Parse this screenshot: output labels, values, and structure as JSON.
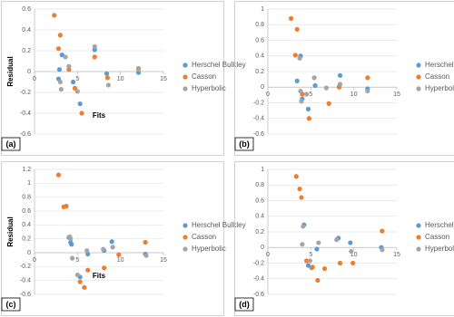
{
  "chart_data": [
    {
      "type": "scatter",
      "label": "(a)",
      "xlabel": "Fits",
      "ylabel": "Residual",
      "xlim": [
        0,
        15
      ],
      "xticks": [
        0,
        5,
        10,
        15
      ],
      "ylim": [
        -0.6,
        0.6
      ],
      "yticks": [
        -0.6,
        -0.4,
        -0.2,
        0,
        0.2,
        0.4,
        0.6
      ],
      "grid": true,
      "series": [
        {
          "name": "Herschel Bulkley",
          "color": "#5b9bd5",
          "x": [
            2.9,
            3.2,
            2.8,
            4.5,
            5.3,
            7.0,
            8.4,
            12.1
          ],
          "values": [
            0.02,
            0.16,
            -0.07,
            -0.1,
            -0.31,
            0.21,
            -0.02,
            -0.01
          ]
        },
        {
          "name": "Casson",
          "color": "#ed7d31",
          "x": [
            2.3,
            3.0,
            2.8,
            4.0,
            4.7,
            5.5,
            7.0,
            8.5,
            12.1
          ],
          "values": [
            0.54,
            0.35,
            0.22,
            0.02,
            -0.16,
            -0.4,
            0.14,
            -0.06,
            0.03
          ]
        },
        {
          "name": "Hyperbolic",
          "color": "#a5a5a5",
          "x": [
            3.1,
            3.0,
            3.6,
            4.0,
            5.0,
            7.0,
            8.6,
            12.1
          ],
          "values": [
            -0.17,
            -0.1,
            0.14,
            0.05,
            -0.19,
            0.24,
            -0.13,
            0.02
          ]
        }
      ]
    },
    {
      "type": "scatter",
      "label": "(b)",
      "xlim": [
        0,
        15
      ],
      "xticks": [
        0,
        5,
        10,
        15
      ],
      "ylim": [
        -0.6,
        1
      ],
      "yticks": [
        -0.6,
        -0.4,
        -0.2,
        0,
        0.2,
        0.4,
        0.6,
        0.8,
        1
      ],
      "grid": true,
      "series": [
        {
          "name": "Herschel Bulkley",
          "color": "#5b9bd5",
          "x": [
            3.4,
            3.8,
            4.0,
            4.7,
            5.5,
            8.3,
            8.4,
            11.6
          ],
          "values": [
            0.08,
            0.4,
            -0.15,
            -0.28,
            0.02,
            0.01,
            0.15,
            -0.02
          ]
        },
        {
          "name": "Casson",
          "color": "#ed7d31",
          "x": [
            2.7,
            3.4,
            3.2,
            4.0,
            4.8,
            7.1,
            8.3,
            11.6
          ],
          "values": [
            0.88,
            0.74,
            0.41,
            -0.09,
            -0.4,
            -0.21,
            0.0,
            0.12
          ]
        },
        {
          "name": "Hyperbolic",
          "color": "#a5a5a5",
          "x": [
            3.7,
            3.8,
            3.9,
            4.5,
            5.4,
            6.8,
            8.4,
            11.6
          ],
          "values": [
            0.37,
            -0.05,
            -0.18,
            -0.09,
            0.12,
            -0.01,
            0.04,
            -0.05
          ]
        }
      ]
    },
    {
      "type": "scatter",
      "label": "(c)",
      "xlabel": "Fits",
      "ylabel": "Residual",
      "xlim": [
        0,
        15
      ],
      "xticks": [
        0,
        5,
        10,
        15
      ],
      "ylim": [
        -0.6,
        1.2
      ],
      "yticks": [
        -0.6,
        -0.4,
        -0.2,
        0,
        0.2,
        0.4,
        0.6,
        0.8,
        1,
        1.2
      ],
      "grid": true,
      "series": [
        {
          "name": "Herschel Bulkley",
          "color": "#5b9bd5",
          "x": [
            4.0,
            4.2,
            4.3,
            5.3,
            6.2,
            8.1,
            9.0,
            12.9
          ],
          "values": [
            0.22,
            0.15,
            0.12,
            -0.35,
            -0.02,
            0.03,
            0.16,
            -0.02
          ]
        },
        {
          "name": "Casson",
          "color": "#ed7d31",
          "x": [
            2.8,
            3.4,
            3.7,
            5.3,
            5.8,
            6.2,
            8.1,
            9.8,
            12.9
          ],
          "values": [
            1.12,
            0.66,
            0.67,
            -0.42,
            -0.5,
            -0.25,
            -0.22,
            -0.03,
            0.15
          ]
        },
        {
          "name": "Hyperbolic",
          "color": "#a5a5a5",
          "x": [
            4.1,
            4.2,
            4.4,
            5.0,
            6.1,
            8.0,
            9.1,
            13.0
          ],
          "values": [
            0.23,
            0.2,
            -0.08,
            -0.32,
            0.03,
            0.05,
            0.08,
            -0.04
          ]
        }
      ]
    },
    {
      "type": "scatter",
      "label": "(d)",
      "xlim": [
        0,
        15
      ],
      "xticks": [
        0,
        5,
        10,
        15
      ],
      "ylim": [
        -0.6,
        1
      ],
      "yticks": [
        -0.6,
        -0.4,
        -0.2,
        0,
        0.2,
        0.4,
        0.6,
        0.8,
        1
      ],
      "grid": true,
      "series": [
        {
          "name": "Herschel Bulkley",
          "color": "#5b9bd5",
          "x": [
            4.2,
            4.7,
            5.1,
            5.7,
            8.2,
            9.6,
            13.2
          ],
          "values": [
            0.29,
            -0.23,
            -0.26,
            -0.02,
            0.12,
            0.06,
            0.0
          ]
        },
        {
          "name": "Casson",
          "color": "#ed7d31",
          "x": [
            3.3,
            3.7,
            3.9,
            4.5,
            5.2,
            5.8,
            6.6,
            8.4,
            9.9,
            13.3
          ],
          "values": [
            0.91,
            0.75,
            0.64,
            -0.17,
            -0.25,
            -0.42,
            -0.27,
            -0.2,
            -0.2,
            0.21
          ]
        },
        {
          "name": "Hyperbolic",
          "color": "#a5a5a5",
          "x": [
            4.1,
            4.0,
            4.9,
            5.9,
            8.0,
            9.7,
            13.3
          ],
          "values": [
            0.27,
            0.04,
            -0.17,
            0.06,
            0.1,
            -0.05,
            -0.03
          ]
        }
      ]
    }
  ]
}
